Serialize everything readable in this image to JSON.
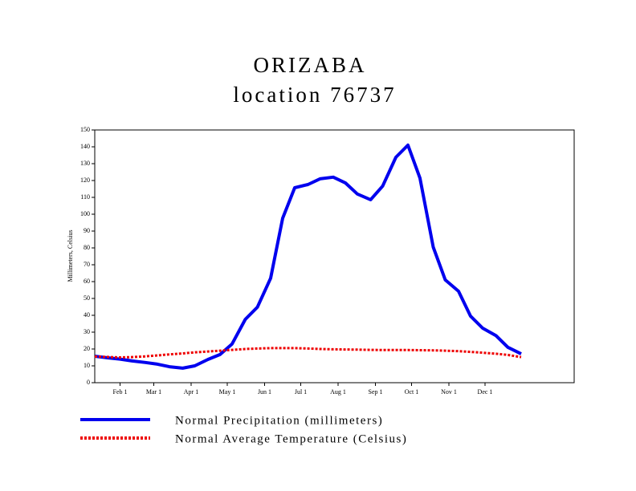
{
  "chart_data": {
    "type": "line",
    "title": "ORIZABA",
    "subtitle": "location 76737",
    "y_label": "Millimeters, Celsius",
    "x": [
      11,
      21,
      32,
      42,
      53,
      63,
      73,
      84,
      94,
      105,
      115,
      125,
      136,
      146,
      157,
      167,
      177,
      188,
      198,
      209,
      219,
      229,
      240,
      250,
      261,
      271,
      281,
      292,
      302,
      313,
      323,
      333,
      344,
      354,
      365
    ],
    "series": [
      {
        "name": "Normal Precipitation (millimeters)",
        "color": "#0000ee",
        "style": "solid",
        "values": [
          15.7,
          14.8,
          14,
          12.9,
          12,
          11,
          9.5,
          8.6,
          10,
          13.8,
          16.7,
          23,
          37.6,
          44.8,
          62,
          97.6,
          115.7,
          117.6,
          121,
          122,
          118.6,
          112,
          108.6,
          116.7,
          133.8,
          141,
          121.4,
          80.5,
          61,
          54.3,
          39.5,
          32.4,
          28,
          21,
          17.1
        ]
      },
      {
        "name": "Normal Average Temperature (Celsius)",
        "color": "#ee0000",
        "style": "dotted",
        "values": [
          15.5,
          15.3,
          15,
          15.2,
          15.6,
          16.2,
          16.8,
          17.4,
          18,
          18.5,
          19,
          19.5,
          20,
          20.3,
          20.5,
          20.5,
          20.5,
          20.3,
          20,
          19.8,
          19.7,
          19.6,
          19.5,
          19.4,
          19.4,
          19.4,
          19.3,
          19.2,
          19,
          18.7,
          18.3,
          17.8,
          17.2,
          16.5,
          15.2
        ]
      }
    ],
    "xlim": [
      11,
      409
    ],
    "xticks": [
      {
        "value": 32,
        "label": "Feb 1"
      },
      {
        "value": 60,
        "label": "Mar 1"
      },
      {
        "value": 91,
        "label": "Apr 1"
      },
      {
        "value": 121,
        "label": "May 1"
      },
      {
        "value": 152,
        "label": "Jun 1"
      },
      {
        "value": 182,
        "label": "Jul 1"
      },
      {
        "value": 213,
        "label": "Aug 1"
      },
      {
        "value": 244,
        "label": "Sep 1"
      },
      {
        "value": 274,
        "label": "Oct 1"
      },
      {
        "value": 305,
        "label": "Nov 1"
      },
      {
        "value": 335,
        "label": "Dec 1"
      }
    ],
    "ylim": [
      0,
      150
    ],
    "yticks": [
      0,
      10,
      20,
      30,
      40,
      50,
      60,
      70,
      80,
      90,
      100,
      110,
      120,
      130,
      140,
      150
    ]
  }
}
